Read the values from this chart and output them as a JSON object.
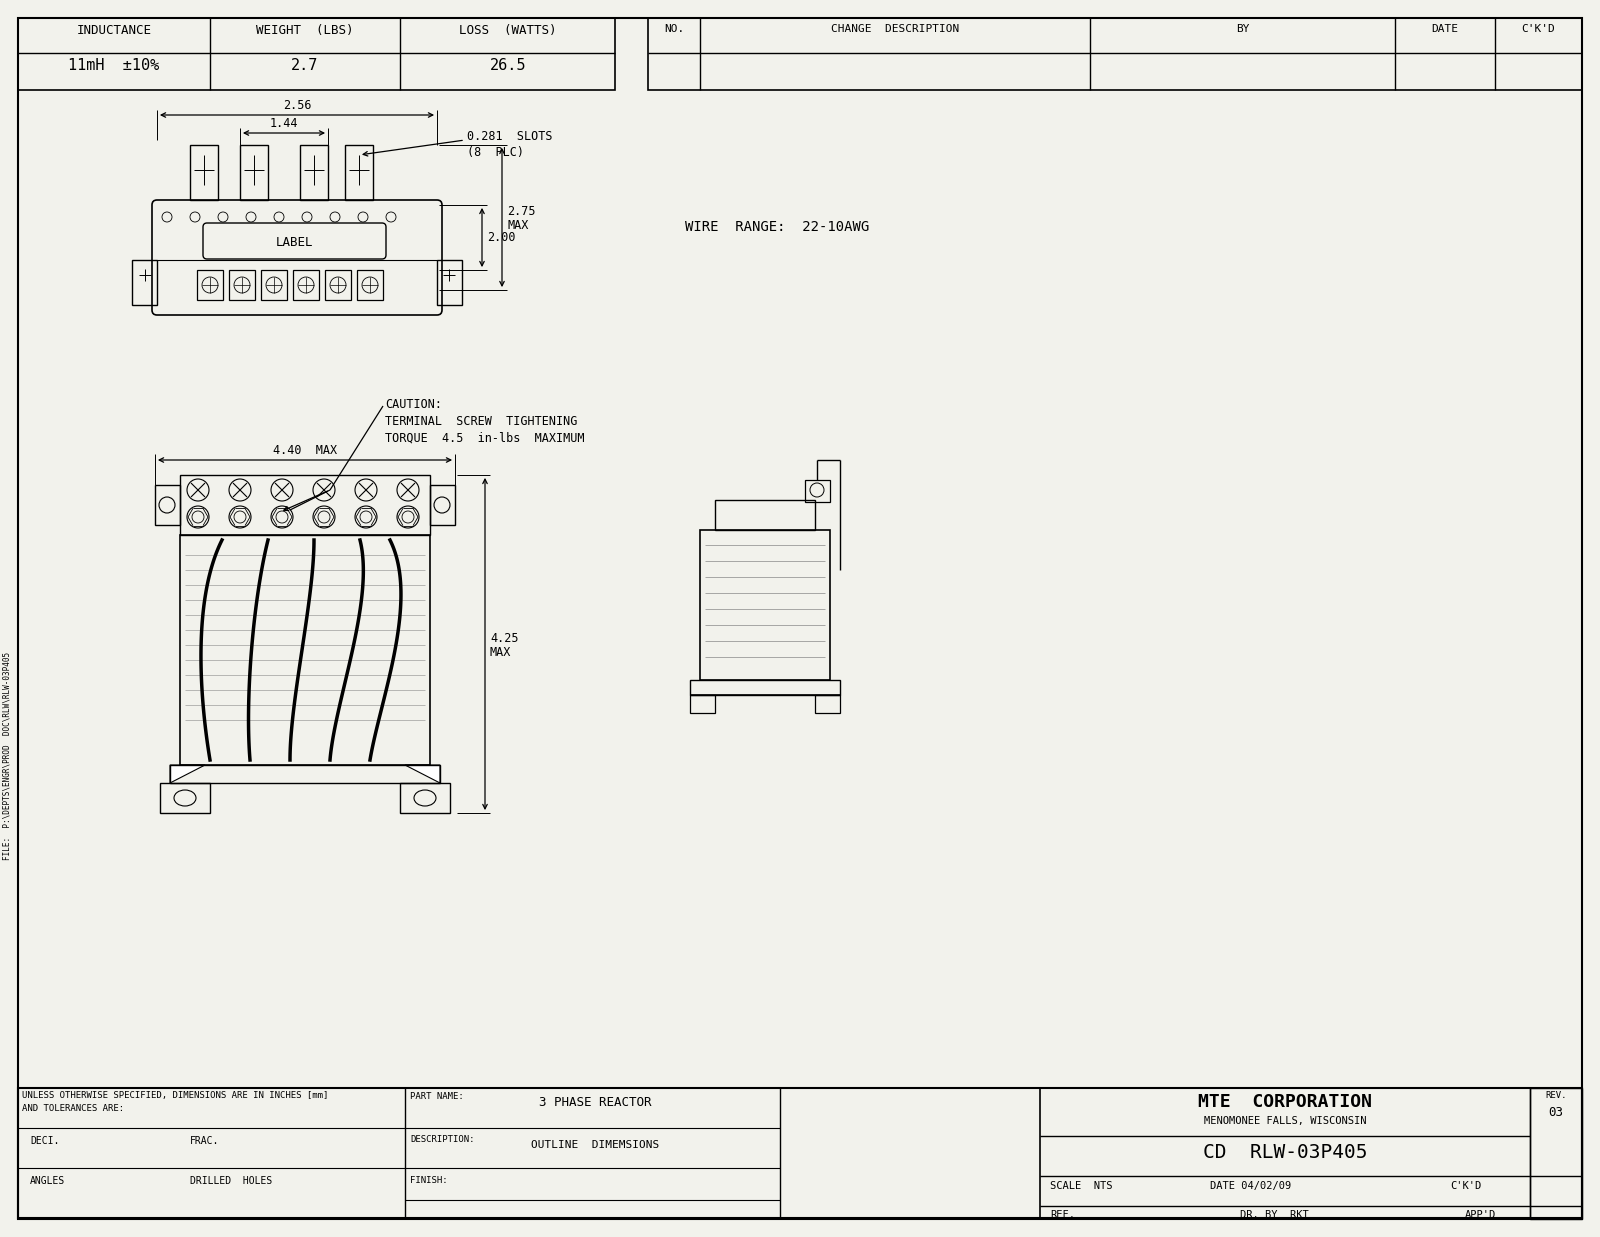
{
  "bg_color": "#f2f2ec",
  "line_color": "#000000",
  "title_company": "MTE  CORPORATION",
  "title_location": "MENOMONEE FALLS, WISCONSIN",
  "part_name": "3 PHASE REACTOR",
  "description": "OUTLINE  DIMEMSIONS",
  "drawing_number": "CD  RLW-03P405",
  "scale": "SCALE  NTS",
  "date_str": "DATE 04/02/09",
  "ckd": "C'K'D",
  "ref": "REF.",
  "dr_by": "DR. BY  RKT",
  "appd": "APP'D",
  "inductance_label": "INDUCTANCE",
  "inductance_value": "11mH  ±10%",
  "weight_label": "WEIGHT  (LBS)",
  "weight_value": "2.7",
  "loss_label": "LOSS  (WATTS)",
  "loss_value": "26.5",
  "no_label": "NO.",
  "change_desc_label": "CHANGE  DESCRIPTION",
  "by_label": "BY",
  "date_label": "DATE",
  "ckd_label": "C'K'D",
  "wire_range": "WIRE  RANGE:  22-10AWG",
  "dim_256": "2.56",
  "dim_144": "1.44",
  "slots_label": "0.281  SLOTS",
  "slots_plc": "(8  PLC)",
  "dim_200": "2.00",
  "dim_275": "2.75",
  "dim_max": "MAX",
  "dim_440_max": "4.40  MAX",
  "dim_425": "4.25",
  "caution_line1": "CAUTION:",
  "caution_line2": "TERMINAL  SCREW  TIGHTENING",
  "caution_line3": "TORQUE  4.5  in-lbs  MAXIMUM",
  "unless_line1": "UNLESS OTHERWISE SPECIFIED, DIMENSIONS ARE IN INCHES [mm]",
  "unless_line2": "AND TOLERANCES ARE:",
  "deci_label": "DECI.",
  "frac_label": "FRAC.",
  "angles_label": "ANGLES",
  "drilled_holes": "DRILLED  HOLES",
  "part_name_label": "PART NAME:",
  "description_label": "DESCRIPTION:",
  "finish_label": "FINISH:",
  "file_text": "FILE:  P:\\DEPTS\\ENGR\\PROD  DOC\\RLW\\RLW-03P405",
  "rev_label": "REV.",
  "rev_value": "03",
  "font_family": "monospace"
}
